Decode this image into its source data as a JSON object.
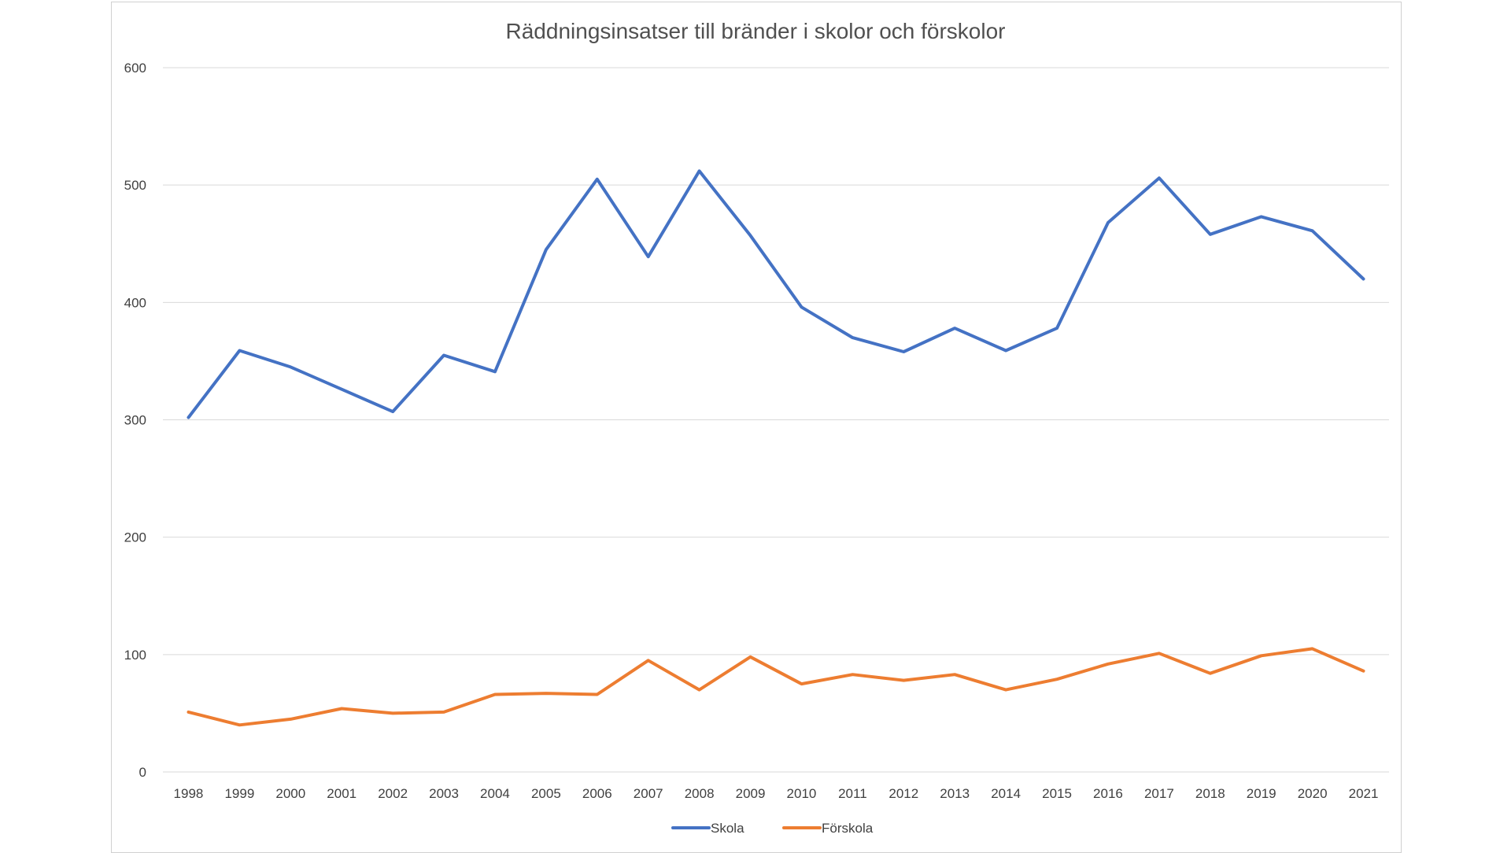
{
  "chart_data": {
    "type": "line",
    "title": "Räddningsinsatser till bränder i skolor och förskolor",
    "xlabel": "",
    "ylabel": "",
    "categories": [
      "1998",
      "1999",
      "2000",
      "2001",
      "2002",
      "2003",
      "2004",
      "2005",
      "2006",
      "2007",
      "2008",
      "2009",
      "2010",
      "2011",
      "2012",
      "2013",
      "2014",
      "2015",
      "2016",
      "2017",
      "2018",
      "2019",
      "2020",
      "2021"
    ],
    "ylim": [
      0,
      600
    ],
    "yticks": [
      "0",
      "100",
      "200",
      "300",
      "400",
      "500",
      "600"
    ],
    "grid": true,
    "legend_position": "bottom",
    "series": [
      {
        "name": "Skola",
        "color": "#4472C4",
        "values": [
          302,
          359,
          345,
          326,
          307,
          355,
          341,
          445,
          505,
          439,
          512,
          457,
          396,
          370,
          358,
          378,
          359,
          378,
          468,
          506,
          458,
          473,
          461,
          420
        ]
      },
      {
        "name": "Förskola",
        "color": "#ED7D31",
        "values": [
          51,
          40,
          45,
          54,
          50,
          51,
          66,
          67,
          66,
          95,
          70,
          98,
          75,
          83,
          78,
          83,
          70,
          79,
          92,
          101,
          84,
          99,
          105,
          86
        ]
      }
    ]
  }
}
